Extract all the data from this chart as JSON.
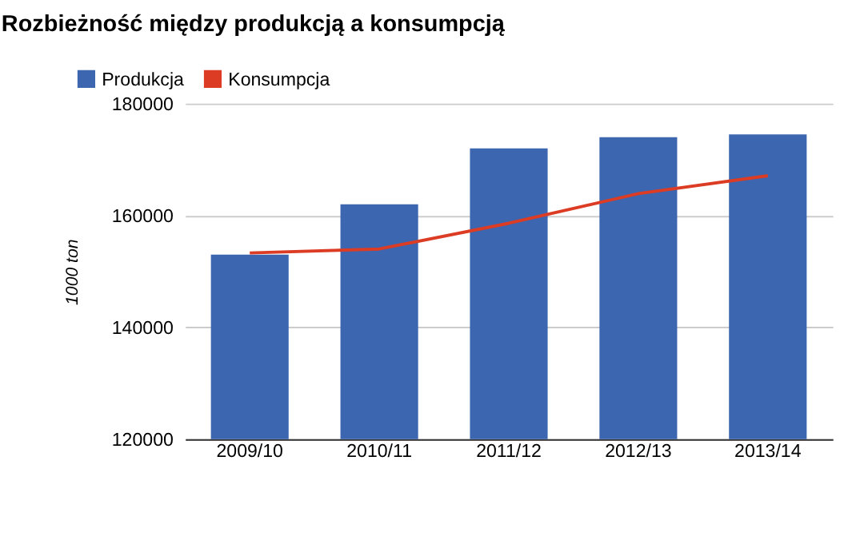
{
  "chart_data": {
    "type": "bar",
    "title": "Rozbieżność między produkcją a konsumpcją",
    "ylabel": "1000 ton",
    "categories": [
      "2009/10",
      "2010/11",
      "2011/12",
      "2012/13",
      "2013/14"
    ],
    "series": [
      {
        "name": "Produkcja",
        "color": "#3d66b0",
        "values": [
          153000,
          162000,
          172000,
          174000,
          174500
        ]
      },
      {
        "name": "Konsumpcja",
        "type": "line",
        "color": "#dc3c24",
        "values": [
          153300,
          154000,
          158600,
          163900,
          167100
        ]
      }
    ],
    "ylim": [
      120000,
      180000
    ],
    "yticks": [
      120000,
      140000,
      160000,
      180000
    ],
    "grid": "y",
    "legend": "top left"
  }
}
